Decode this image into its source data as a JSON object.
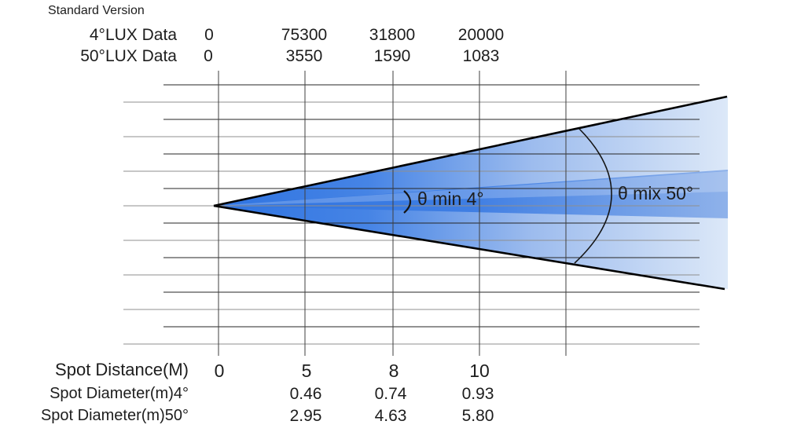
{
  "title": "Standard Version",
  "top_table": {
    "rows": [
      {
        "label": "4°LUX Data",
        "values": [
          "0",
          "75300",
          "31800",
          "20000"
        ]
      },
      {
        "label": "50°LUX Data",
        "values": [
          "0",
          "3550",
          "1590",
          "1083"
        ]
      }
    ]
  },
  "beam": {
    "min_label": "θ min 4°",
    "max_label": "θ mix 50°"
  },
  "bottom_table": {
    "rows": [
      {
        "label": "Spot Distance(M)",
        "values": [
          "0",
          "5",
          "8",
          "10"
        ]
      },
      {
        "label": "Spot Diameter(m)4°",
        "values": [
          "0.46",
          "0.74",
          "0.93"
        ]
      },
      {
        "label": "Spot Diameter(m)50°",
        "values": [
          "2.95",
          "4.63",
          "5.80"
        ]
      }
    ]
  },
  "colors": {
    "beam_core": "#2e73e1",
    "beam_core2": "#4684e5",
    "beam_fade_mid": "#9dbcee",
    "beam_fade_end": "#dce8f8",
    "beam_mid": "#3f7ee3",
    "beam_band_end": "#8fb2ea",
    "beam_highlight": "rgba(255,255,255,0.22)",
    "grid_dark": "#262626",
    "grid_gray": "#8f8f8f",
    "grid_vertical": "#3f3f3f",
    "outline": "#000000",
    "arc": "#151515",
    "text": "#1d1d1d"
  },
  "chart_data": {
    "type": "table",
    "title": "Standard Version",
    "x_label": "Spot Distance(M)",
    "distances_m": [
      0,
      5,
      8,
      10
    ],
    "series": [
      {
        "name": "4°LUX Data",
        "values": [
          0,
          75300,
          31800,
          20000
        ]
      },
      {
        "name": "50°LUX Data",
        "values": [
          0,
          3550,
          1590,
          1083
        ]
      },
      {
        "name": "Spot Diameter(m)4°",
        "values": [
          null,
          0.46,
          0.74,
          0.93
        ]
      },
      {
        "name": "Spot Diameter(m)50°",
        "values": [
          null,
          2.95,
          4.63,
          5.8
        ]
      }
    ],
    "beam_angles_deg": {
      "min": 4,
      "max": 50
    },
    "layout": {
      "grid": true,
      "beam_apex_at_distance": 0
    }
  }
}
